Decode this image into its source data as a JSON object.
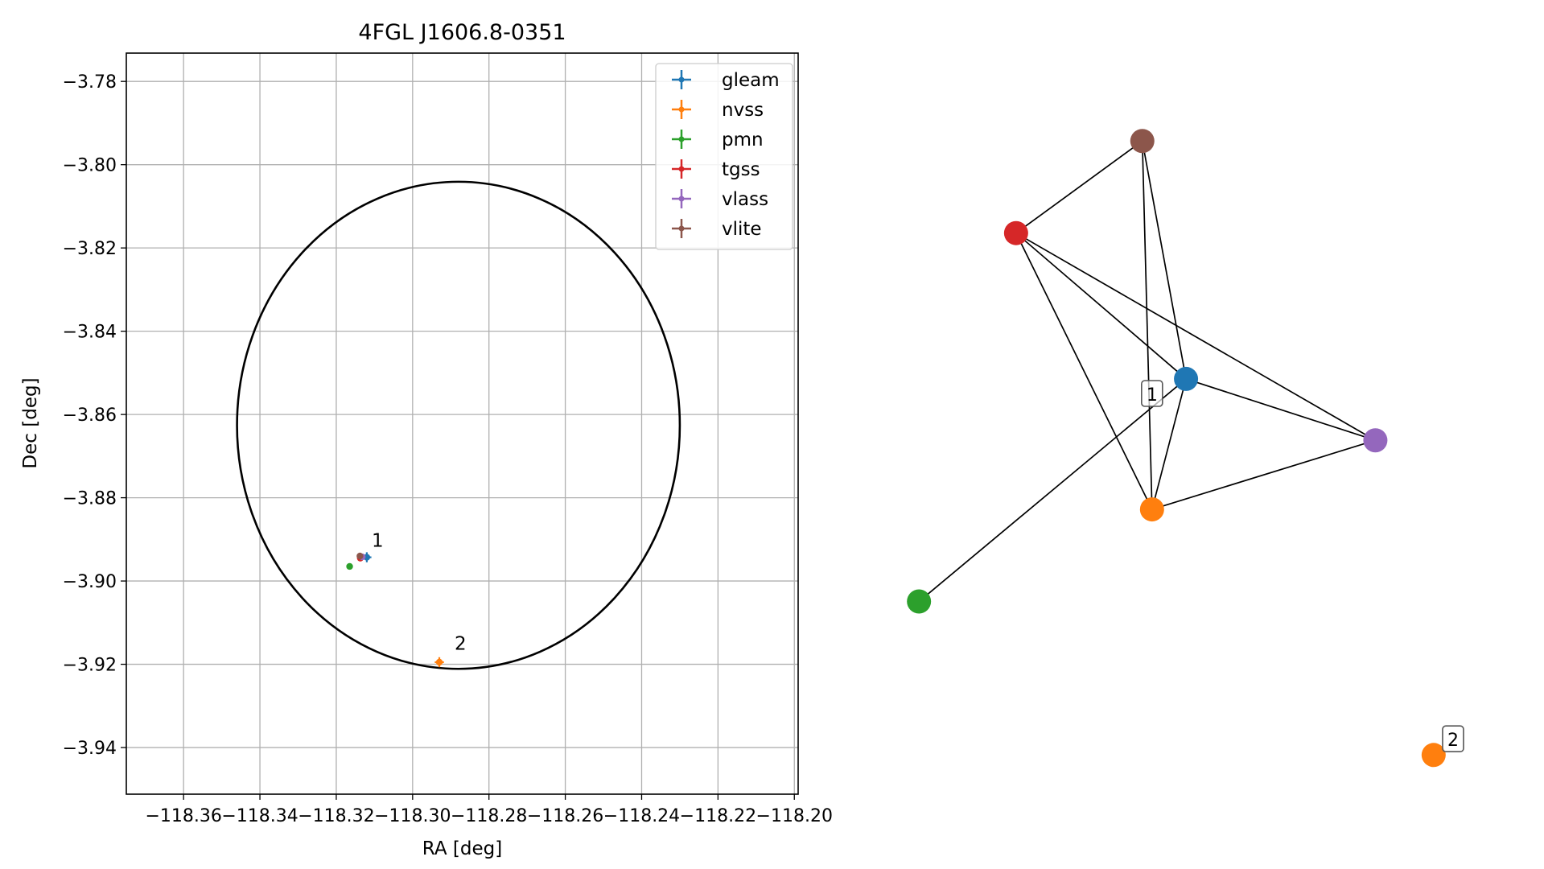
{
  "chart_data": [
    {
      "type": "scatter",
      "title": "4FGL J1606.8-0351",
      "xlabel": "RA [deg]",
      "ylabel": "Dec [deg]",
      "xlim": [
        -118.375,
        -118.199
      ],
      "ylim": [
        -3.9512,
        -3.7732
      ],
      "xticks": [
        -118.36,
        -118.34,
        -118.32,
        -118.3,
        -118.28,
        -118.26,
        -118.24,
        -118.22,
        -118.2
      ],
      "xtick_labels": [
        "−118.36",
        "−118.34",
        "−118.32",
        "−118.30",
        "−118.28",
        "−118.26",
        "−118.24",
        "−118.22",
        "−118.20"
      ],
      "yticks": [
        -3.78,
        -3.8,
        -3.82,
        -3.84,
        -3.86,
        -3.88,
        -3.9,
        -3.92,
        -3.94
      ],
      "ytick_labels": [
        "−3.78",
        "−3.80",
        "−3.82",
        "−3.84",
        "−3.86",
        "−3.88",
        "−3.90",
        "−3.92",
        "−3.94"
      ],
      "grid": true,
      "legend_position": "top-right",
      "ellipse": {
        "center": [
          -118.288,
          -3.8626
        ],
        "semi_axis_ra": 0.058,
        "semi_axis_dec": 0.0585,
        "color": "#000000"
      },
      "series": [
        {
          "name": "gleam",
          "color": "#1f77b4",
          "points": [
            {
              "x": -118.312,
              "y": -3.8943,
              "xerr": 0.0012,
              "yerr": 0.0012
            }
          ]
        },
        {
          "name": "nvss",
          "color": "#ff7f0e",
          "points": [
            {
              "x": -118.293,
              "y": -3.9195,
              "xerr": 0.0012,
              "yerr": 0.0012
            }
          ]
        },
        {
          "name": "pmn",
          "color": "#2ca02c",
          "points": [
            {
              "x": -118.3165,
              "y": -3.8965,
              "xerr": 0.0,
              "yerr": 0.0
            }
          ]
        },
        {
          "name": "tgss",
          "color": "#d62728",
          "points": [
            {
              "x": -118.3137,
              "y": -3.8945,
              "xerr": 0.0004,
              "yerr": 0.0004
            }
          ]
        },
        {
          "name": "vlass",
          "color": "#9467bd",
          "points": [
            {
              "x": -118.3132,
              "y": -3.8942,
              "xerr": 0.0002,
              "yerr": 0.0002
            }
          ]
        },
        {
          "name": "vlite",
          "color": "#8c564b",
          "points": [
            {
              "x": -118.3138,
              "y": -3.894,
              "xerr": 0.0008,
              "yerr": 0.0008
            }
          ]
        }
      ],
      "annotations": [
        {
          "text": "1",
          "x": -118.3107,
          "y": -3.8918
        },
        {
          "text": "2",
          "x": -118.289,
          "y": -3.9165
        }
      ]
    },
    {
      "type": "network",
      "nodes": [
        {
          "id": "gleam",
          "color": "#1f77b4",
          "x": 0.68,
          "y": 0.56
        },
        {
          "id": "nvss",
          "color": "#ff7f0e",
          "x": 0.54,
          "y": 0.22
        },
        {
          "id": "pmn",
          "color": "#2ca02c",
          "x": -0.42,
          "y": -0.02
        },
        {
          "id": "tgss",
          "color": "#d62728",
          "x": -0.02,
          "y": 0.94
        },
        {
          "id": "vlass",
          "color": "#9467bd",
          "x": 1.46,
          "y": 0.4
        },
        {
          "id": "vlite",
          "color": "#8c564b",
          "x": 0.5,
          "y": 1.18
        },
        {
          "id": "nvss_2",
          "color": "#ff7f0e",
          "x": 1.7,
          "y": -0.42
        }
      ],
      "edges": [
        [
          "vlite",
          "tgss"
        ],
        [
          "vlite",
          "gleam"
        ],
        [
          "vlite",
          "nvss"
        ],
        [
          "tgss",
          "gleam"
        ],
        [
          "tgss",
          "vlass"
        ],
        [
          "tgss",
          "nvss"
        ],
        [
          "gleam",
          "vlass"
        ],
        [
          "gleam",
          "nvss"
        ],
        [
          "gleam",
          "pmn"
        ],
        [
          "nvss",
          "vlass"
        ]
      ],
      "labels": [
        {
          "text": "1",
          "x": 0.54,
          "y": 0.52
        },
        {
          "text": "2",
          "x": 1.78,
          "y": -0.38
        }
      ],
      "xlim": [
        -0.52,
        1.8
      ],
      "ylim": [
        -0.52,
        1.3
      ]
    }
  ]
}
